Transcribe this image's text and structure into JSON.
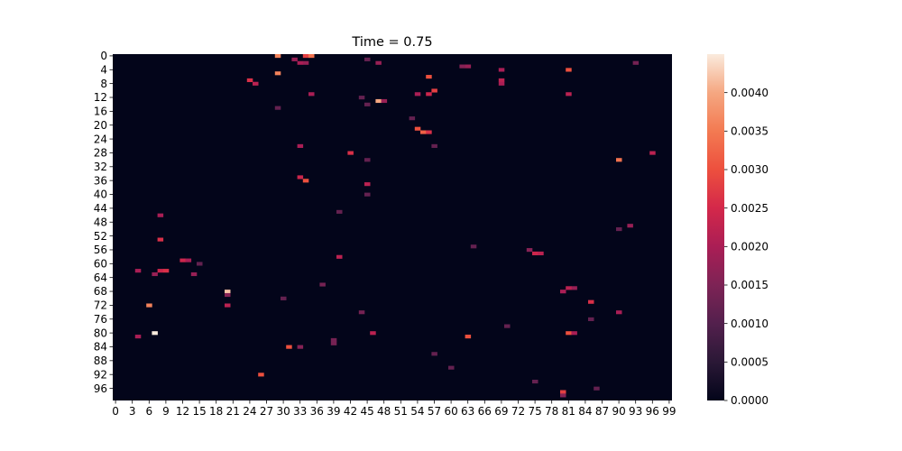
{
  "chart_data": {
    "type": "heatmap",
    "title": "Time = 0.75",
    "rows": 100,
    "cols": 100,
    "x_tick_labels": [
      "0",
      "3",
      "6",
      "9",
      "12",
      "15",
      "18",
      "21",
      "24",
      "27",
      "30",
      "33",
      "36",
      "39",
      "42",
      "45",
      "48",
      "51",
      "54",
      "57",
      "60",
      "63",
      "66",
      "69",
      "72",
      "75",
      "78",
      "81",
      "84",
      "87",
      "90",
      "93",
      "96",
      "99"
    ],
    "y_tick_labels": [
      "0",
      "4",
      "8",
      "12",
      "16",
      "20",
      "24",
      "28",
      "32",
      "36",
      "40",
      "44",
      "48",
      "52",
      "56",
      "60",
      "64",
      "68",
      "72",
      "76",
      "80",
      "84",
      "88",
      "92",
      "96"
    ],
    "colorbar": {
      "min": 0.0,
      "max": 0.0045,
      "tick_values": [
        0.0,
        0.0005,
        0.001,
        0.0015,
        0.002,
        0.0025,
        0.003,
        0.0035,
        0.004
      ],
      "tick_labels": [
        "0.0000",
        "0.0005",
        "0.0010",
        "0.0015",
        "0.0020",
        "0.0025",
        "0.0030",
        "0.0035",
        "0.0040"
      ],
      "colormap": "rocket"
    },
    "background_value": 0.0,
    "cells": [
      [
        0,
        29,
        0.0036
      ],
      [
        0,
        34,
        0.0028
      ],
      [
        0,
        35,
        0.0034
      ],
      [
        1,
        32,
        0.0018
      ],
      [
        2,
        33,
        0.002
      ],
      [
        2,
        34,
        0.0018
      ],
      [
        1,
        45,
        0.0012
      ],
      [
        2,
        47,
        0.0018
      ],
      [
        3,
        62,
        0.0016
      ],
      [
        3,
        63,
        0.0018
      ],
      [
        2,
        93,
        0.0014
      ],
      [
        4,
        81,
        0.003
      ],
      [
        5,
        29,
        0.0036
      ],
      [
        6,
        56,
        0.003
      ],
      [
        4,
        69,
        0.002
      ],
      [
        7,
        69,
        0.0022
      ],
      [
        8,
        69,
        0.002
      ],
      [
        7,
        24,
        0.0026
      ],
      [
        8,
        25,
        0.0022
      ],
      [
        10,
        57,
        0.0028
      ],
      [
        11,
        56,
        0.0024
      ],
      [
        11,
        54,
        0.002
      ],
      [
        11,
        35,
        0.002
      ],
      [
        11,
        81,
        0.0022
      ],
      [
        13,
        47,
        0.004
      ],
      [
        13,
        48,
        0.0018
      ],
      [
        15,
        29,
        0.0012
      ],
      [
        21,
        54,
        0.003
      ],
      [
        22,
        55,
        0.0032
      ],
      [
        22,
        56,
        0.0026
      ],
      [
        26,
        33,
        0.002
      ],
      [
        28,
        42,
        0.0026
      ],
      [
        28,
        96,
        0.0022
      ],
      [
        30,
        90,
        0.0034
      ],
      [
        35,
        33,
        0.0024
      ],
      [
        36,
        34,
        0.003
      ],
      [
        37,
        45,
        0.0022
      ],
      [
        46,
        8,
        0.002
      ],
      [
        49,
        92,
        0.0018
      ],
      [
        53,
        8,
        0.0026
      ],
      [
        57,
        75,
        0.0024
      ],
      [
        57,
        76,
        0.0022
      ],
      [
        56,
        74,
        0.0016
      ],
      [
        58,
        40,
        0.0022
      ],
      [
        59,
        12,
        0.0024
      ],
      [
        59,
        13,
        0.002
      ],
      [
        62,
        8,
        0.0024
      ],
      [
        62,
        9,
        0.0026
      ],
      [
        63,
        7,
        0.0018
      ],
      [
        62,
        4,
        0.002
      ],
      [
        63,
        14,
        0.0018
      ],
      [
        68,
        20,
        0.0042
      ],
      [
        69,
        20,
        0.0016
      ],
      [
        67,
        82,
        0.0018
      ],
      [
        67,
        81,
        0.0022
      ],
      [
        68,
        80,
        0.002
      ],
      [
        71,
        85,
        0.0026
      ],
      [
        72,
        20,
        0.0022
      ],
      [
        72,
        6,
        0.0036
      ],
      [
        74,
        90,
        0.002
      ],
      [
        80,
        7,
        0.0045
      ],
      [
        80,
        46,
        0.0022
      ],
      [
        81,
        63,
        0.003
      ],
      [
        80,
        81,
        0.003
      ],
      [
        80,
        82,
        0.002
      ],
      [
        81,
        4,
        0.002
      ],
      [
        84,
        31,
        0.003
      ],
      [
        84,
        33,
        0.0016
      ],
      [
        83,
        39,
        0.0014
      ],
      [
        92,
        26,
        0.003
      ],
      [
        97,
        80,
        0.0028
      ],
      [
        98,
        80,
        0.0016
      ],
      [
        12,
        44,
        0.0012
      ],
      [
        14,
        45,
        0.0012
      ],
      [
        18,
        53,
        0.0012
      ],
      [
        26,
        57,
        0.0012
      ],
      [
        30,
        45,
        0.0012
      ],
      [
        40,
        45,
        0.0012
      ],
      [
        45,
        40,
        0.0012
      ],
      [
        50,
        90,
        0.0012
      ],
      [
        55,
        64,
        0.0012
      ],
      [
        60,
        15,
        0.0012
      ],
      [
        66,
        37,
        0.0014
      ],
      [
        70,
        30,
        0.0012
      ],
      [
        74,
        44,
        0.0014
      ],
      [
        76,
        85,
        0.0012
      ],
      [
        78,
        70,
        0.0012
      ],
      [
        82,
        39,
        0.0014
      ],
      [
        86,
        57,
        0.0012
      ],
      [
        90,
        60,
        0.0012
      ],
      [
        94,
        75,
        0.0012
      ],
      [
        96,
        86,
        0.0012
      ]
    ]
  }
}
